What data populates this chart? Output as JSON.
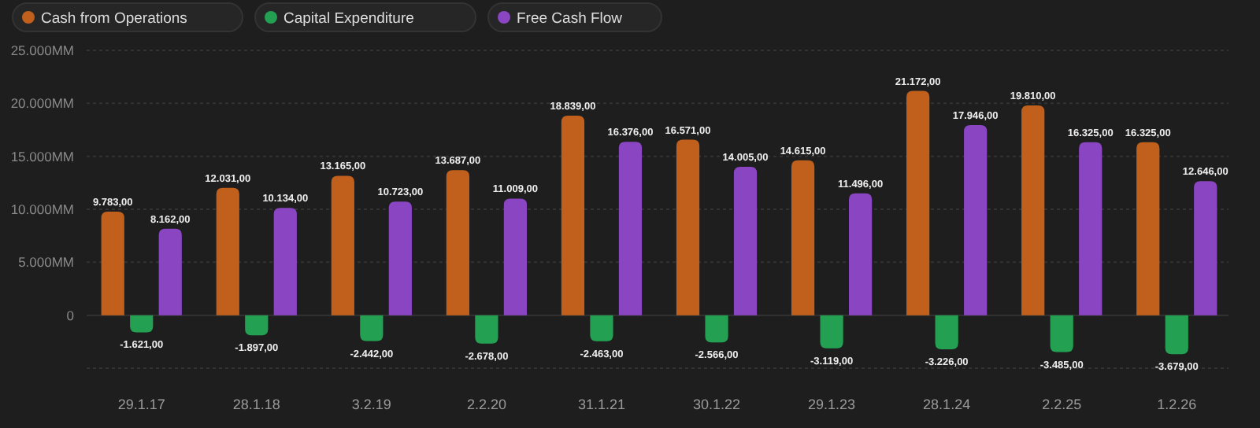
{
  "chart_data": {
    "type": "bar",
    "categories": [
      "29.1.17",
      "28.1.18",
      "3.2.19",
      "2.2.20",
      "31.1.21",
      "30.1.22",
      "29.1.23",
      "28.1.24",
      "2.2.25",
      "1.2.26"
    ],
    "series": [
      {
        "name": "Cash from Operations",
        "color": "#c0601c",
        "values": [
          9783,
          12031,
          13165,
          13687,
          18839,
          16571,
          14615,
          21172,
          19810,
          16325
        ],
        "value_labels": [
          "9.783,00",
          "12.031,00",
          "13.165,00",
          "13.687,00",
          "18.839,00",
          "16.571,00",
          "14.615,00",
          "21.172,00",
          "19.810,00",
          "16.325,00"
        ]
      },
      {
        "name": "Capital Expenditure",
        "color": "#23a052",
        "values": [
          -1621,
          -1897,
          -2442,
          -2678,
          -2463,
          -2566,
          -3119,
          -3226,
          -3485,
          -3679
        ],
        "value_labels": [
          "-1.621,00",
          "-1.897,00",
          "-2.442,00",
          "-2.678,00",
          "-2.463,00",
          "-2.566,00",
          "-3.119,00",
          "-3.226,00",
          "-3.485,00",
          "-3.679,00"
        ]
      },
      {
        "name": "Free Cash Flow",
        "color": "#8a46c2",
        "values": [
          8162,
          10134,
          10723,
          11009,
          16376,
          14005,
          11496,
          17946,
          16325,
          12646
        ],
        "value_labels": [
          "8.162,00",
          "10.134,00",
          "10.723,00",
          "11.009,00",
          "16.376,00",
          "14.005,00",
          "11.496,00",
          "17.946,00",
          "16.325,00",
          "12.646,00"
        ]
      }
    ],
    "ylim": [
      -5000,
      25000
    ],
    "yticks": [
      {
        "value": -5000,
        "label": null
      },
      {
        "value": 0,
        "label": "0"
      },
      {
        "value": 5000,
        "label": "5.000MM"
      },
      {
        "value": 10000,
        "label": "10.000MM"
      },
      {
        "value": 15000,
        "label": "15.000MM"
      },
      {
        "value": 20000,
        "label": "20.000MM"
      },
      {
        "value": 25000,
        "label": "25.000MM"
      }
    ],
    "grid": "y",
    "legend": "top left"
  }
}
